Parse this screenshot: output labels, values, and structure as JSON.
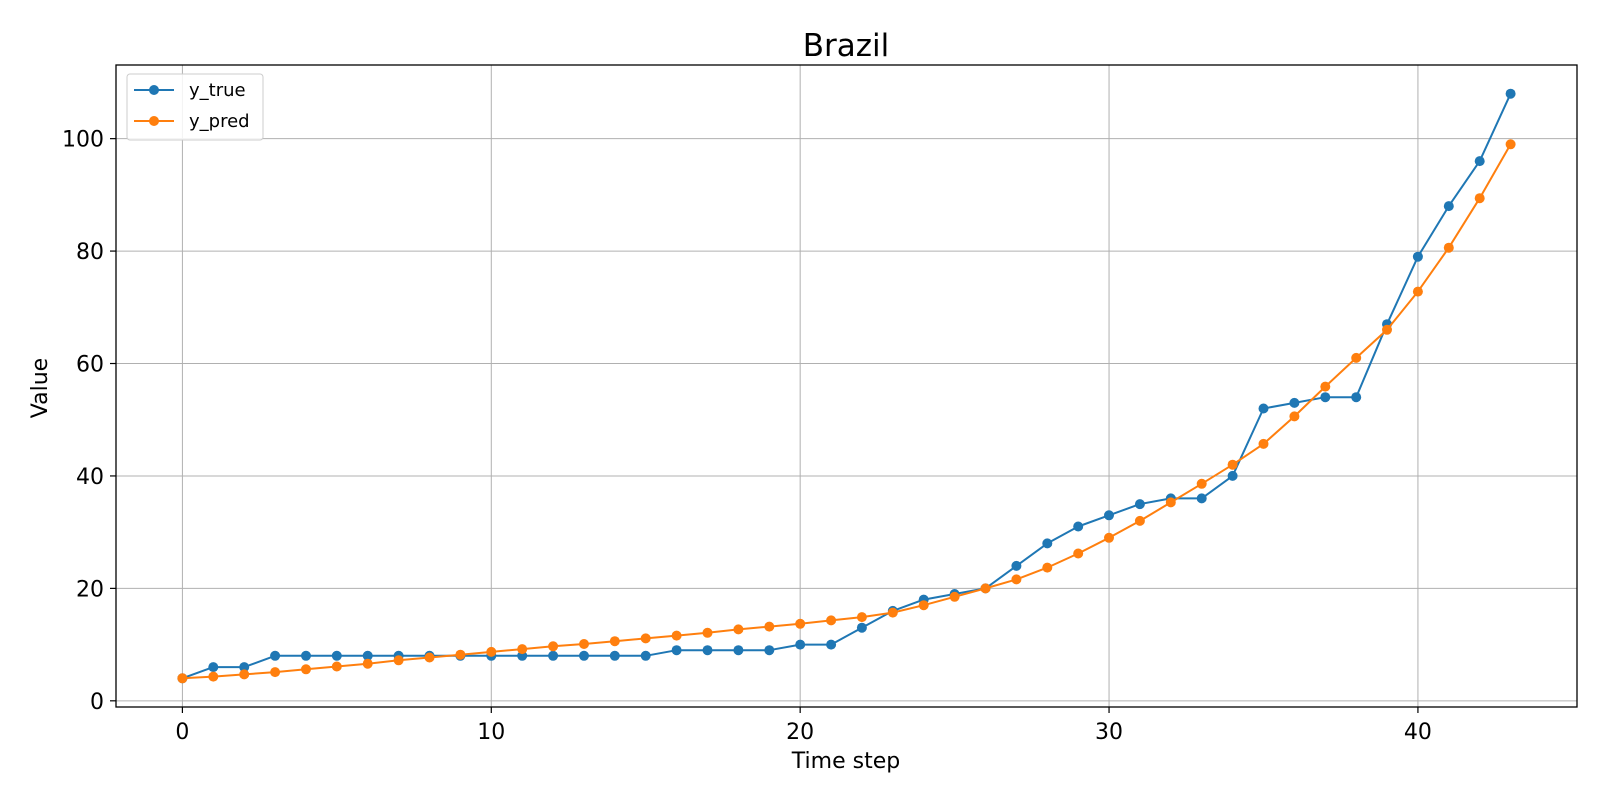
{
  "chart_data": {
    "type": "line",
    "title": "Brazil",
    "xlabel": "Time step",
    "ylabel": "Value",
    "xlim": [
      -2.15,
      45.15
    ],
    "ylim": [
      -1.1,
      113.1
    ],
    "xticks": [
      0,
      10,
      20,
      30,
      40
    ],
    "yticks": [
      0,
      20,
      40,
      60,
      80,
      100
    ],
    "grid": true,
    "legend_position": "upper-left",
    "x": [
      0,
      1,
      2,
      3,
      4,
      5,
      6,
      7,
      8,
      9,
      10,
      11,
      12,
      13,
      14,
      15,
      16,
      17,
      18,
      19,
      20,
      21,
      22,
      23,
      24,
      25,
      26,
      27,
      28,
      29,
      30,
      31,
      32,
      33,
      34,
      35,
      36,
      37,
      38,
      39,
      40,
      41,
      42,
      43
    ],
    "series": [
      {
        "name": "y_true",
        "color": "#1f77b4",
        "marker": "circle",
        "values": [
          4,
          6,
          6,
          8,
          8,
          8,
          8,
          8,
          8,
          8,
          8,
          8,
          8,
          8,
          8,
          8,
          9,
          9,
          9,
          9,
          10,
          10,
          13,
          16,
          18,
          19,
          20,
          24,
          28,
          31,
          33,
          35,
          36,
          36,
          40,
          52,
          53,
          54,
          54,
          67,
          79,
          88,
          96,
          108
        ]
      },
      {
        "name": "y_pred",
        "color": "#ff7f0e",
        "marker": "circle",
        "values": [
          4.0,
          4.3,
          4.7,
          5.1,
          5.6,
          6.1,
          6.6,
          7.2,
          7.7,
          8.2,
          8.7,
          9.2,
          9.7,
          10.1,
          10.6,
          11.1,
          11.6,
          12.1,
          12.7,
          13.2,
          13.7,
          14.3,
          14.9,
          15.7,
          17.0,
          18.5,
          20.0,
          21.6,
          23.7,
          26.2,
          29.0,
          32.0,
          35.3,
          38.6,
          42.0,
          45.7,
          50.6,
          55.9,
          61.0,
          66.0,
          72.8,
          80.6,
          89.4,
          99.0
        ]
      }
    ]
  }
}
